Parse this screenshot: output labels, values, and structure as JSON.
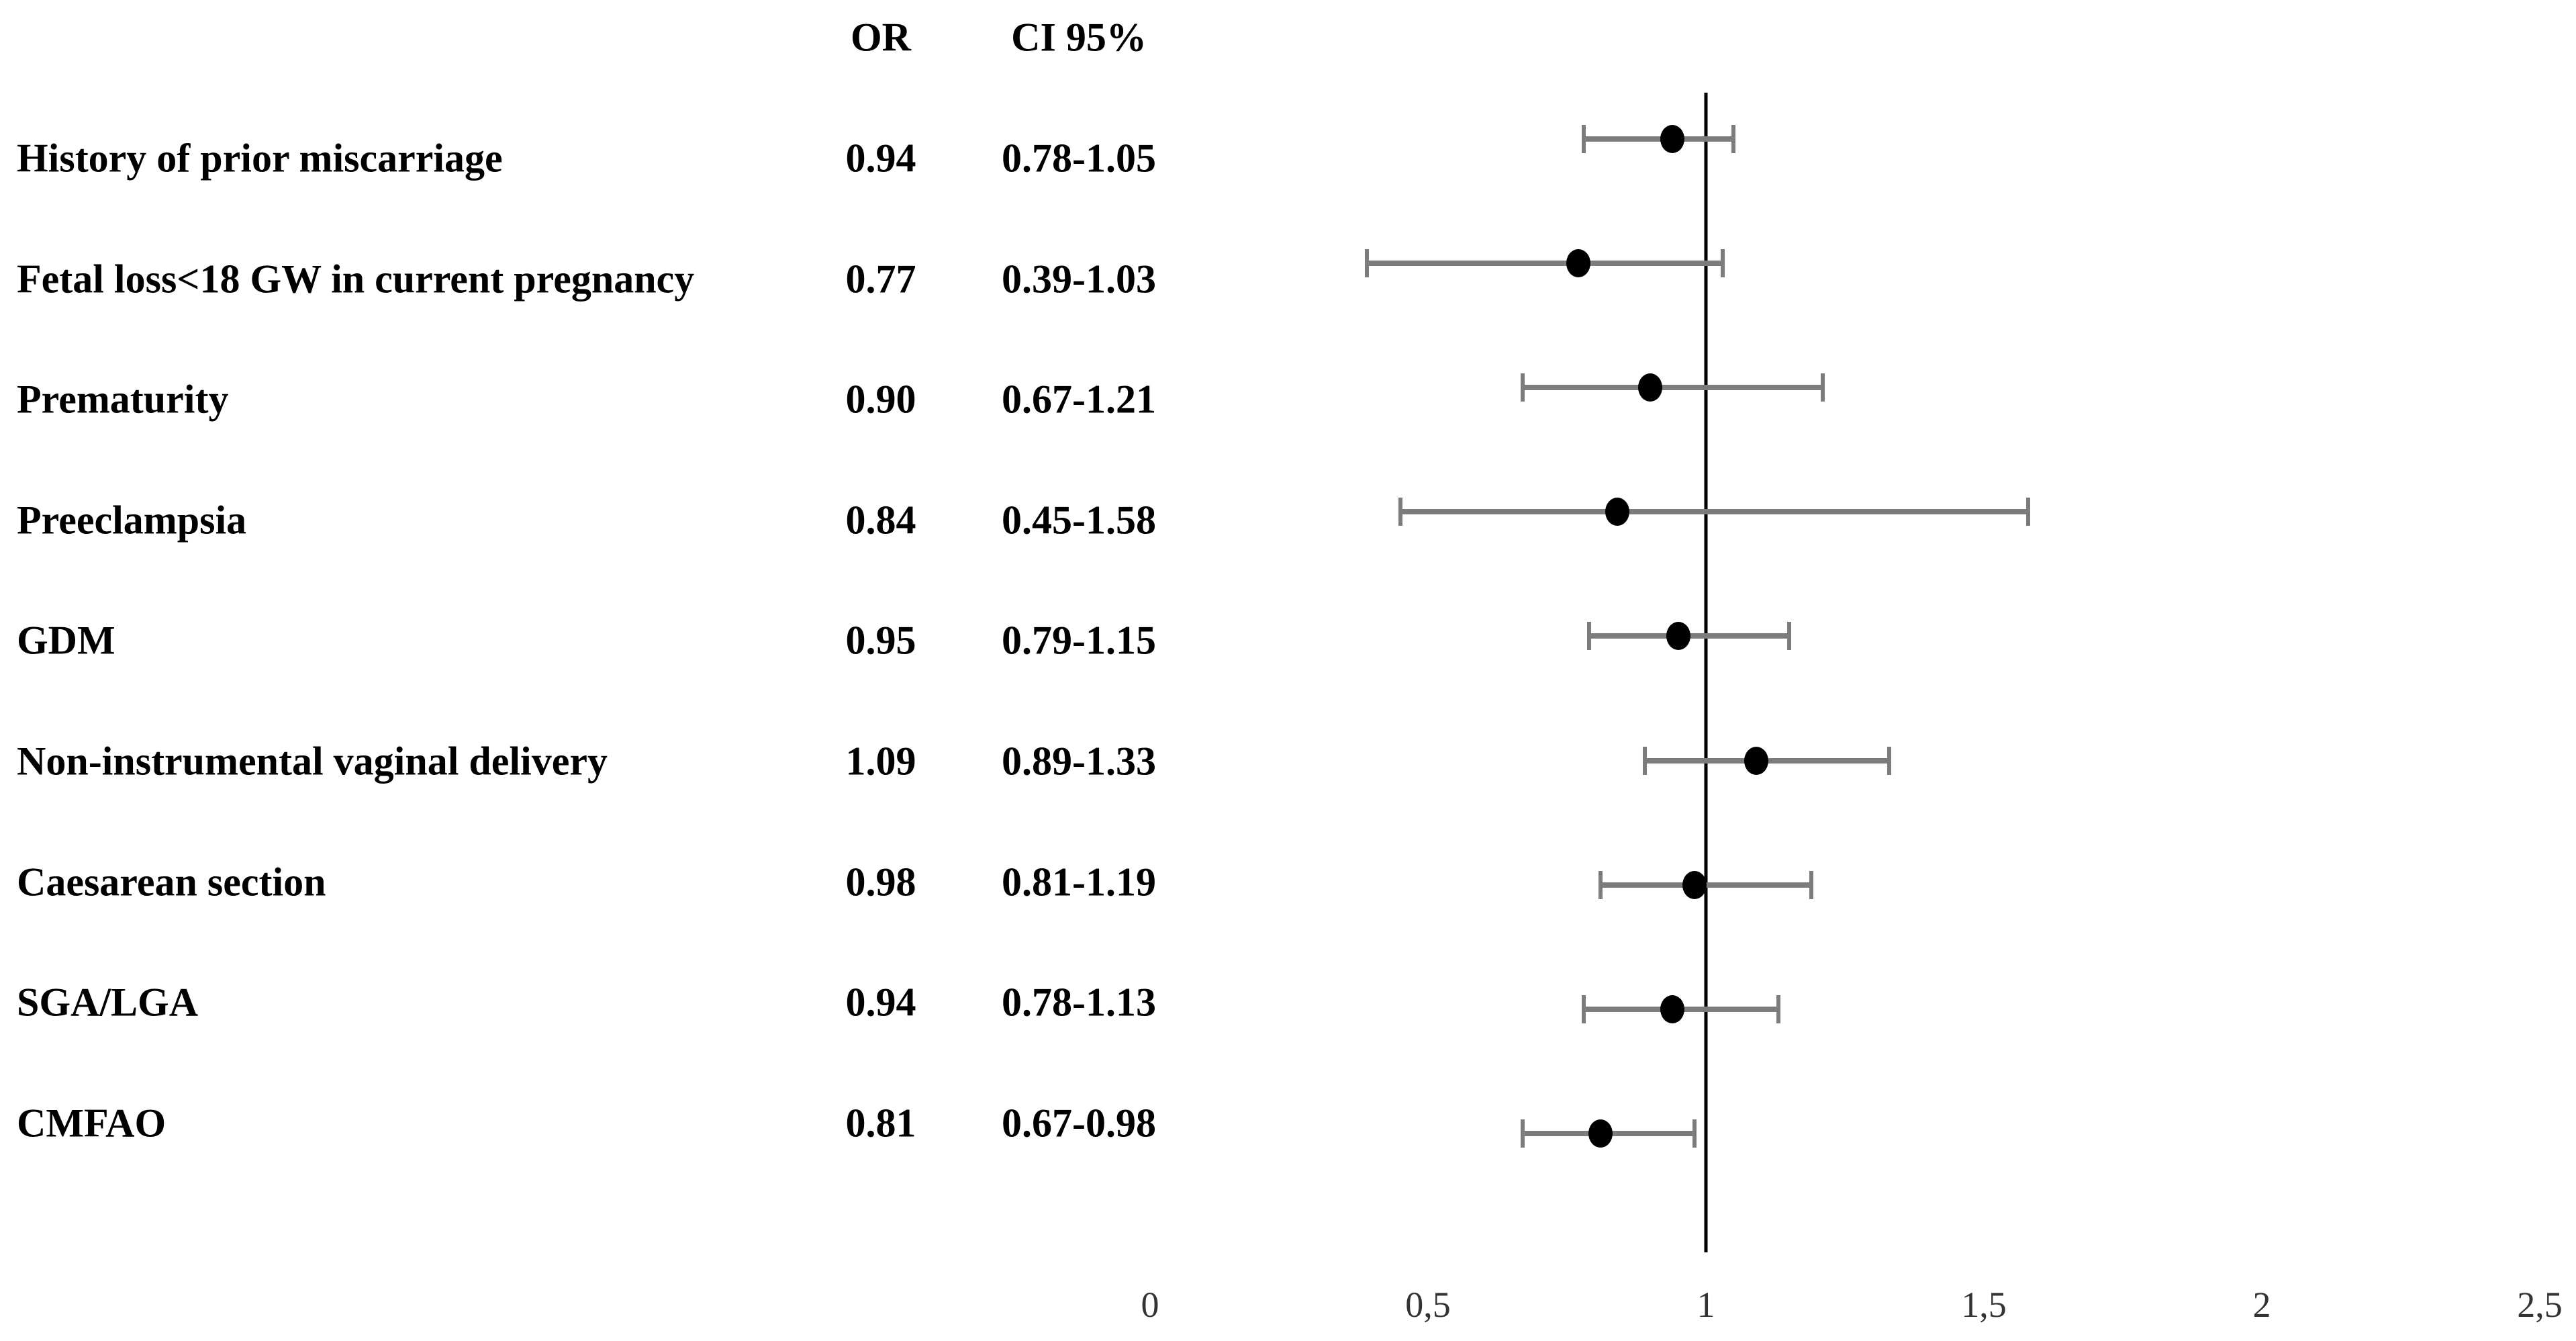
{
  "chart_data": {
    "type": "forest",
    "title": "",
    "xlabel": "",
    "ylabel": "",
    "columns": {
      "or_header": "OR",
      "ci_header": "CI 95%"
    },
    "categories": [
      "History of prior miscarriage",
      "Fetal loss<18 GW in current pregnancy",
      "Prematurity",
      "Preeclampsia",
      "GDM",
      "Non-instrumental vaginal delivery",
      "Caesarean section",
      "SGA/LGA",
      "CMFAO"
    ],
    "series": [
      {
        "name": "OR",
        "values": [
          0.94,
          0.77,
          0.9,
          0.84,
          0.95,
          1.09,
          0.98,
          0.94,
          0.81
        ]
      },
      {
        "name": "CI 95% lower",
        "values": [
          0.78,
          0.39,
          0.67,
          0.45,
          0.79,
          0.89,
          0.81,
          0.78,
          0.67
        ]
      },
      {
        "name": "CI 95% upper",
        "values": [
          1.05,
          1.03,
          1.21,
          1.58,
          1.15,
          1.33,
          1.19,
          1.13,
          0.98
        ]
      }
    ],
    "rows": [
      {
        "label": "History of prior miscarriage",
        "or_text": "0.94",
        "ci_text": "0.78-1.05",
        "or": 0.94,
        "ci_low": 0.78,
        "ci_high": 1.05
      },
      {
        "label": "Fetal loss<18 GW in current pregnancy",
        "or_text": "0.77",
        "ci_text": "0.39-1.03",
        "or": 0.77,
        "ci_low": 0.39,
        "ci_high": 1.03
      },
      {
        "label": "Prematurity",
        "or_text": "0.90",
        "ci_text": "0.67-1.21",
        "or": 0.9,
        "ci_low": 0.67,
        "ci_high": 1.21
      },
      {
        "label": "Preeclampsia",
        "or_text": "0.84",
        "ci_text": "0.45-1.58",
        "or": 0.84,
        "ci_low": 0.45,
        "ci_high": 1.58
      },
      {
        "label": "GDM",
        "or_text": "0.95",
        "ci_text": "0.79-1.15",
        "or": 0.95,
        "ci_low": 0.79,
        "ci_high": 1.15
      },
      {
        "label": "Non-instrumental vaginal delivery",
        "or_text": "1.09",
        "ci_text": "0.89-1.33",
        "or": 1.09,
        "ci_low": 0.89,
        "ci_high": 1.33
      },
      {
        "label": "Caesarean section",
        "or_text": "0.98",
        "ci_text": "0.81-1.19",
        "or": 0.98,
        "ci_low": 0.81,
        "ci_high": 1.19
      },
      {
        "label": "SGA/LGA",
        "or_text": "0.94",
        "ci_text": "0.78-1.13",
        "or": 0.94,
        "ci_low": 0.78,
        "ci_high": 1.13
      },
      {
        "label": "CMFAO",
        "or_text": "0.81",
        "ci_text": "0.67-0.98",
        "or": 0.81,
        "ci_low": 0.67,
        "ci_high": 0.98
      }
    ],
    "x_ticks": [
      {
        "value": 0,
        "label": "0"
      },
      {
        "value": 0.5,
        "label": "0,5"
      },
      {
        "value": 1,
        "label": "1"
      },
      {
        "value": 1.5,
        "label": "1,5"
      },
      {
        "value": 2,
        "label": "2"
      },
      {
        "value": 2.5,
        "label": "2,5"
      }
    ],
    "xlim": [
      0,
      2.5
    ],
    "reference_line": 1,
    "grid": false,
    "legend": "none",
    "colors": {
      "background": "#ffffff",
      "text": "#000000",
      "tick": "#333333",
      "bar": "#7c7c7c",
      "marker": "#000000",
      "refline": "#000000"
    }
  }
}
